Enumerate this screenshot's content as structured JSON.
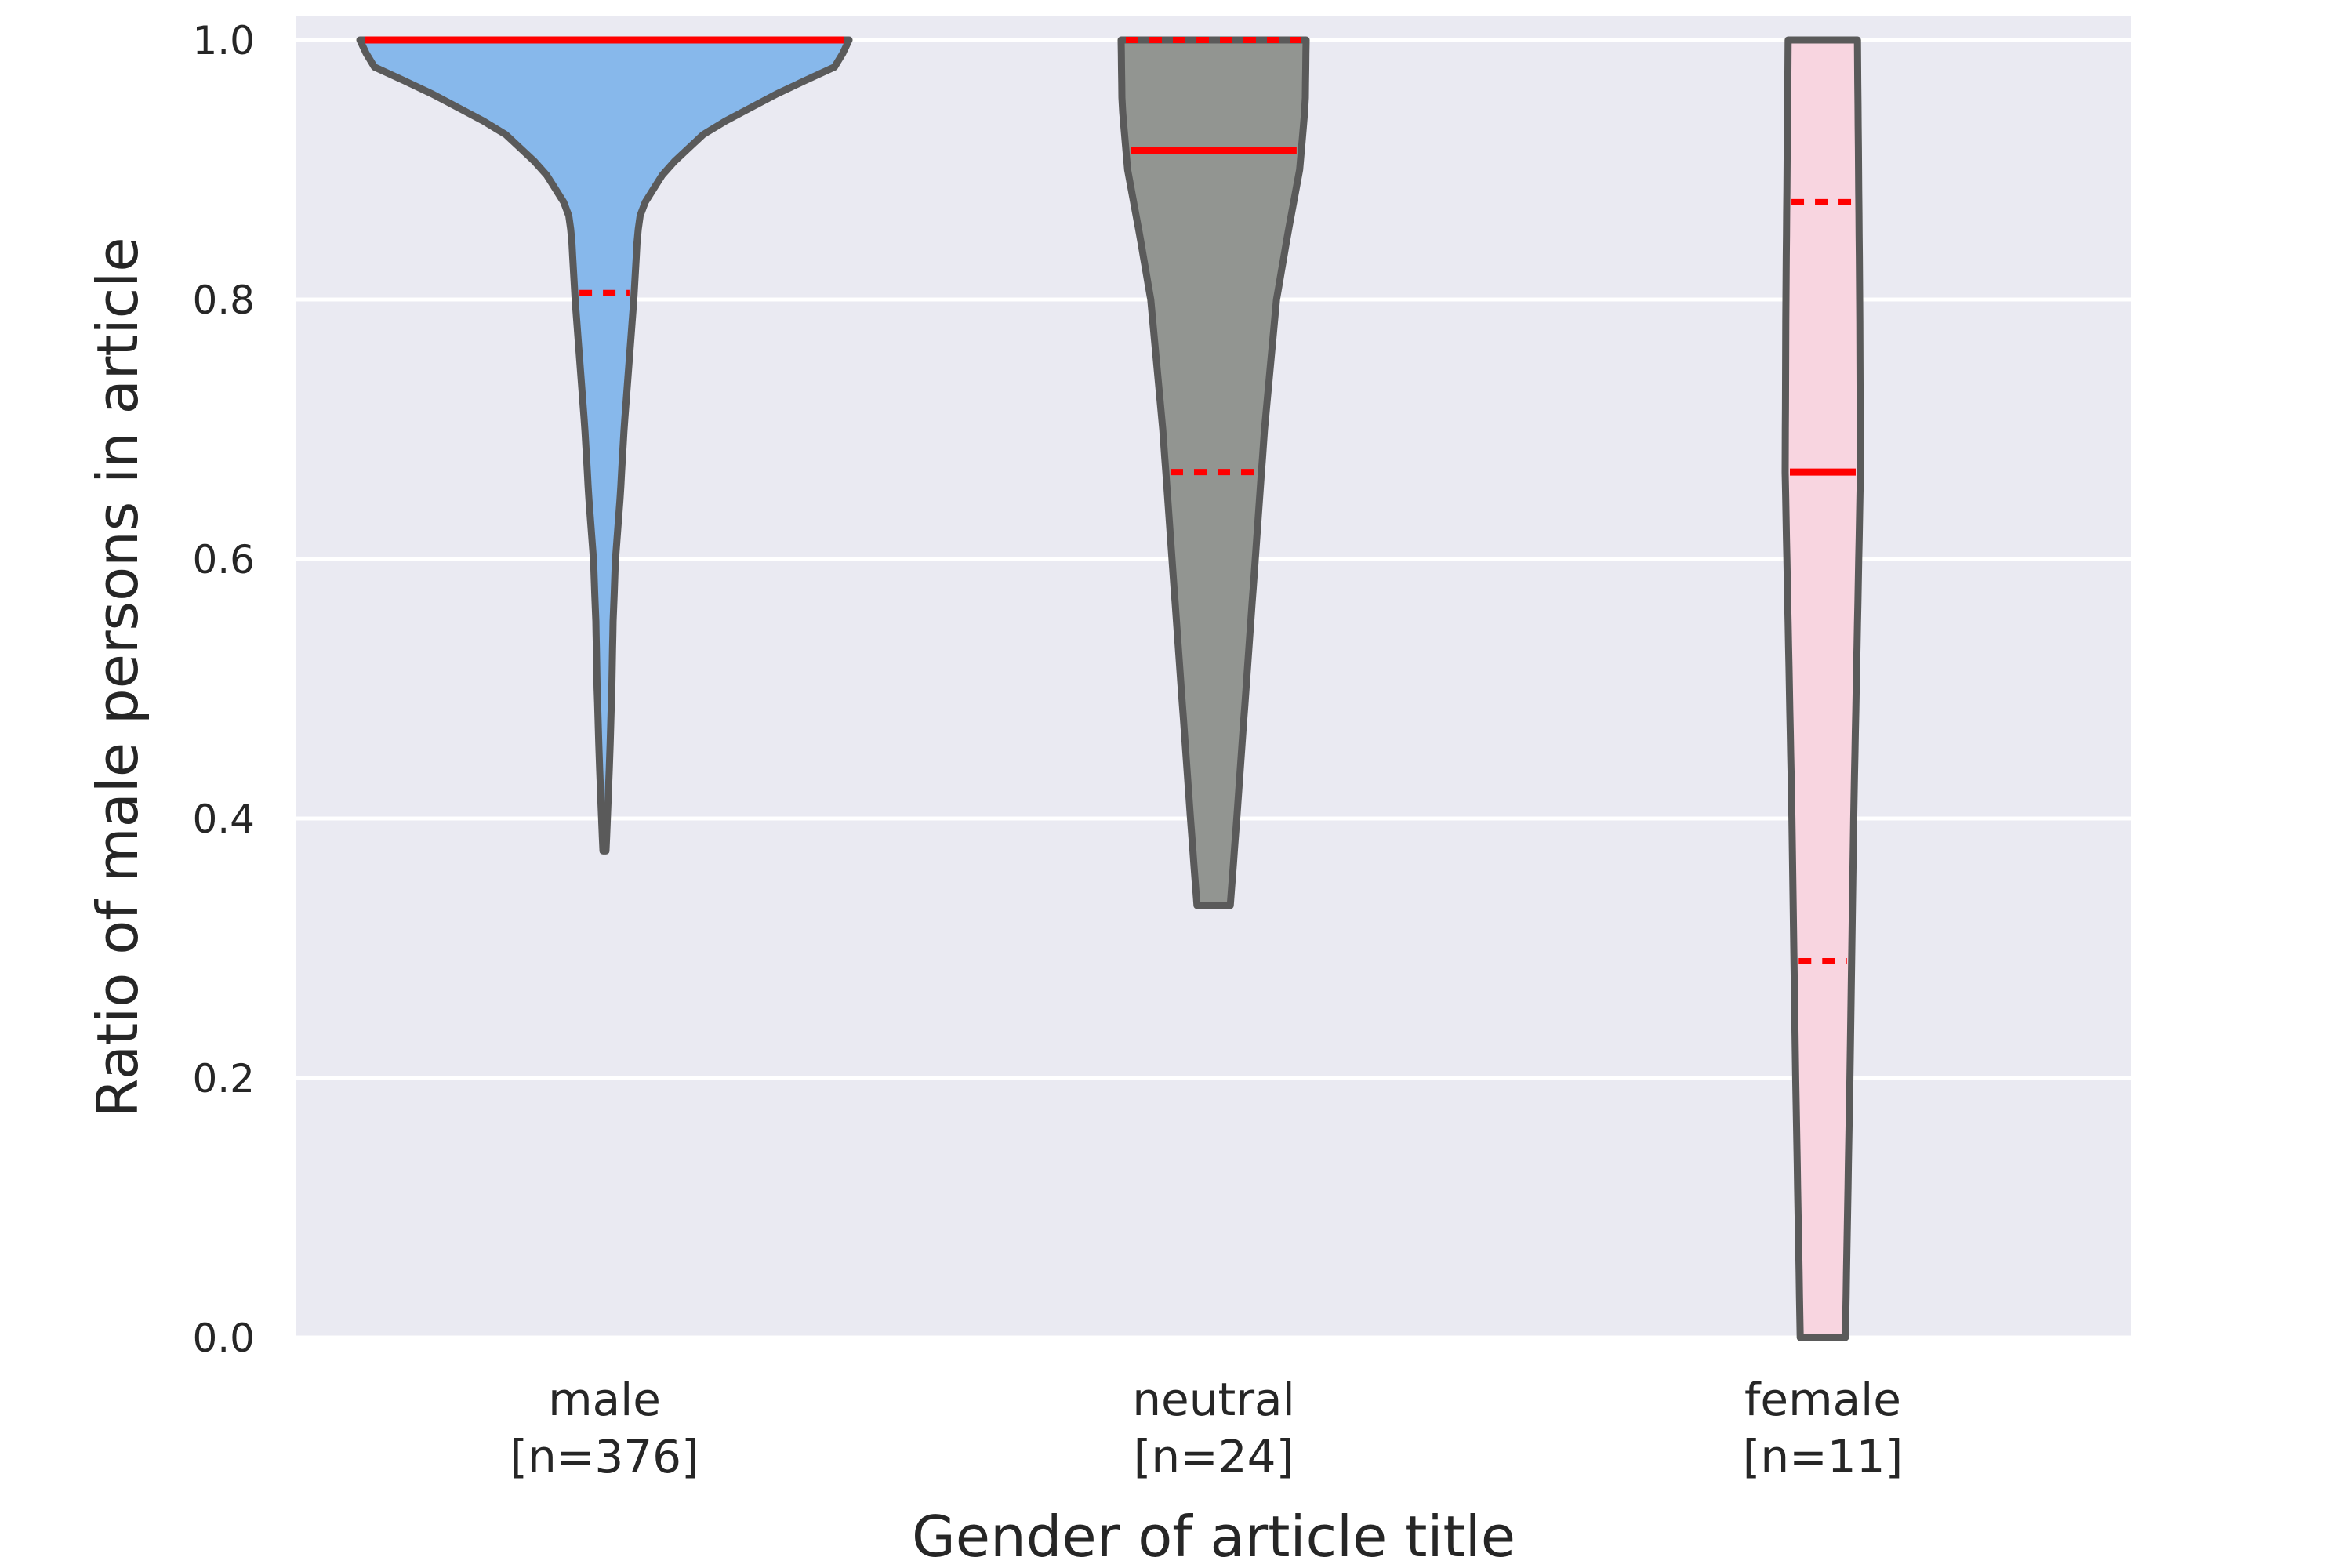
{
  "chart_data": {
    "type": "violin",
    "xlabel": "Gender of article title",
    "ylabel": "Ratio of male persons in article",
    "ylim": [
      0,
      1
    ],
    "yticks": [
      "0.0",
      "0.2",
      "0.4",
      "0.6",
      "0.8",
      "1.0"
    ],
    "grid": true,
    "categories": [
      {
        "name": "male",
        "count_label": "[n=376]",
        "color": "#87b8eb",
        "range": [
          0.375,
          1.0
        ],
        "median": 1.0,
        "quartiles": [
          0.805,
          1.0
        ],
        "density": [
          [
            0.375,
            0.006
          ],
          [
            0.4,
            0.012
          ],
          [
            0.45,
            0.022
          ],
          [
            0.5,
            0.03
          ],
          [
            0.55,
            0.035
          ],
          [
            0.6,
            0.045
          ],
          [
            0.65,
            0.065
          ],
          [
            0.7,
            0.08
          ],
          [
            0.75,
            0.1
          ],
          [
            0.8,
            0.12
          ],
          [
            0.85,
            0.135
          ],
          [
            0.87,
            0.15
          ],
          [
            0.9,
            0.25
          ],
          [
            0.93,
            0.42
          ],
          [
            0.96,
            0.72
          ],
          [
            0.98,
            0.95
          ],
          [
            1.0,
            1.0
          ]
        ]
      },
      {
        "name": "neutral",
        "count_label": "[n=24]",
        "color": "#929591",
        "range": [
          0.333,
          1.0
        ],
        "median": 0.915,
        "quartiles": [
          0.667,
          1.0
        ],
        "density": [
          [
            0.333,
            0.18
          ],
          [
            0.4,
            0.25
          ],
          [
            0.5,
            0.35
          ],
          [
            0.6,
            0.45
          ],
          [
            0.7,
            0.55
          ],
          [
            0.8,
            0.68
          ],
          [
            0.85,
            0.8
          ],
          [
            0.9,
            0.93
          ],
          [
            0.95,
            0.99
          ],
          [
            1.0,
            1.0
          ]
        ]
      },
      {
        "name": "female",
        "count_label": "[n=11]",
        "color": "#f8d5e0",
        "range": [
          0.0,
          1.0
        ],
        "median": 0.667,
        "quartiles": [
          0.29,
          0.875
        ],
        "density": [
          [
            0.0,
            0.6
          ],
          [
            0.2,
            0.72
          ],
          [
            0.4,
            0.82
          ],
          [
            0.667,
            1.0
          ],
          [
            0.8,
            0.98
          ],
          [
            1.0,
            0.92
          ]
        ]
      }
    ]
  },
  "style": {
    "plot_bg": "#eaeaf2",
    "grid_color": "#ffffff",
    "outline_color": "#5a5a5a",
    "line_color": "#ff0000"
  }
}
